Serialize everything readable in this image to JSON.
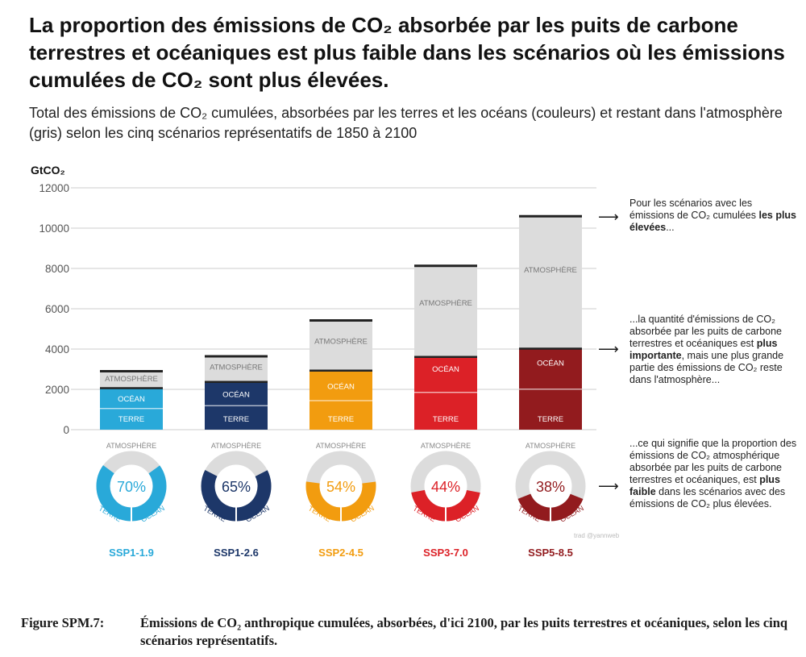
{
  "title": "La proportion des émissions de CO₂ absorbée par les puits de carbone terrestres et océaniques est plus faible dans les scénarios où les émissions cumulées de CO₂ sont plus élevées.",
  "subtitle": "Total des émissions de CO₂ cumulées, absorbées par les terres et les océans (couleurs) et restant dans l'atmosphère (gris) selon les cinq scénarios représentatifs de 1850 à 2100",
  "chart_data": {
    "type": "bar",
    "stacked": true,
    "ylabel": "GtCO₂",
    "ylim": [
      0,
      12000
    ],
    "yticks": [
      0,
      2000,
      4000,
      6000,
      8000,
      10000,
      12000
    ],
    "grid": true,
    "categories": [
      "SSP1-1.9",
      "SSP1-2.6",
      "SSP2-4.5",
      "SSP3-7.0",
      "SSP5-8.5"
    ],
    "colors": [
      "#29a9d9",
      "#1d3769",
      "#f29c0f",
      "#dc2127",
      "#921b1e"
    ],
    "atmosphere_color": "#dcdcdc",
    "segment_labels": {
      "land": "TERRE",
      "ocean": "OCÉAN",
      "atmosphere": "ATMOSPHÈRE"
    },
    "series": [
      {
        "name": "TERRE",
        "values": [
          1050,
          1190,
          1440,
          1850,
          2010
        ]
      },
      {
        "name": "OCÉAN",
        "values": [
          1010,
          1180,
          1490,
          1760,
          2010
        ]
      },
      {
        "name": "ATMOSPHÈRE",
        "values": [
          840,
          1270,
          2490,
          4520,
          6570
        ]
      }
    ],
    "sink_percent": [
      70,
      65,
      54,
      44,
      38
    ],
    "sink_percent_labels": [
      "70%",
      "65%",
      "54%",
      "44%",
      "38%"
    ]
  },
  "annotations": [
    [
      {
        "t": "Pour les scénarios avec les émissions de CO₂ cumulées "
      },
      {
        "t": "les plus élevées",
        "b": true
      },
      {
        "t": "..."
      }
    ],
    [
      {
        "t": "...la quantité d'émissions de CO₂ absorbée par les puits de carbone terrestres et océaniques est "
      },
      {
        "t": "plus importante",
        "b": true
      },
      {
        "t": ", mais une plus grande partie des émissions de CO₂ reste dans l'atmosphère..."
      }
    ],
    [
      {
        "t": "...ce qui signifie que la proportion des émissions de CO₂ atmosphérique absorbée par les puits de carbone terrestres et océaniques, est "
      },
      {
        "t": "plus faible",
        "b": true
      },
      {
        "t": " dans les scénarios avec des émissions de CO₂ plus élevées."
      }
    ]
  ],
  "arrow": "⟶",
  "watermark": "trad @yannweb",
  "caption": {
    "label": "Figure SPM.7:",
    "text": "Émissions de CO₂ anthropique cumulées, absorbées, d'ici 2100, par les puits terrestres et océaniques, selon les cinq scénarios représentatifs."
  }
}
